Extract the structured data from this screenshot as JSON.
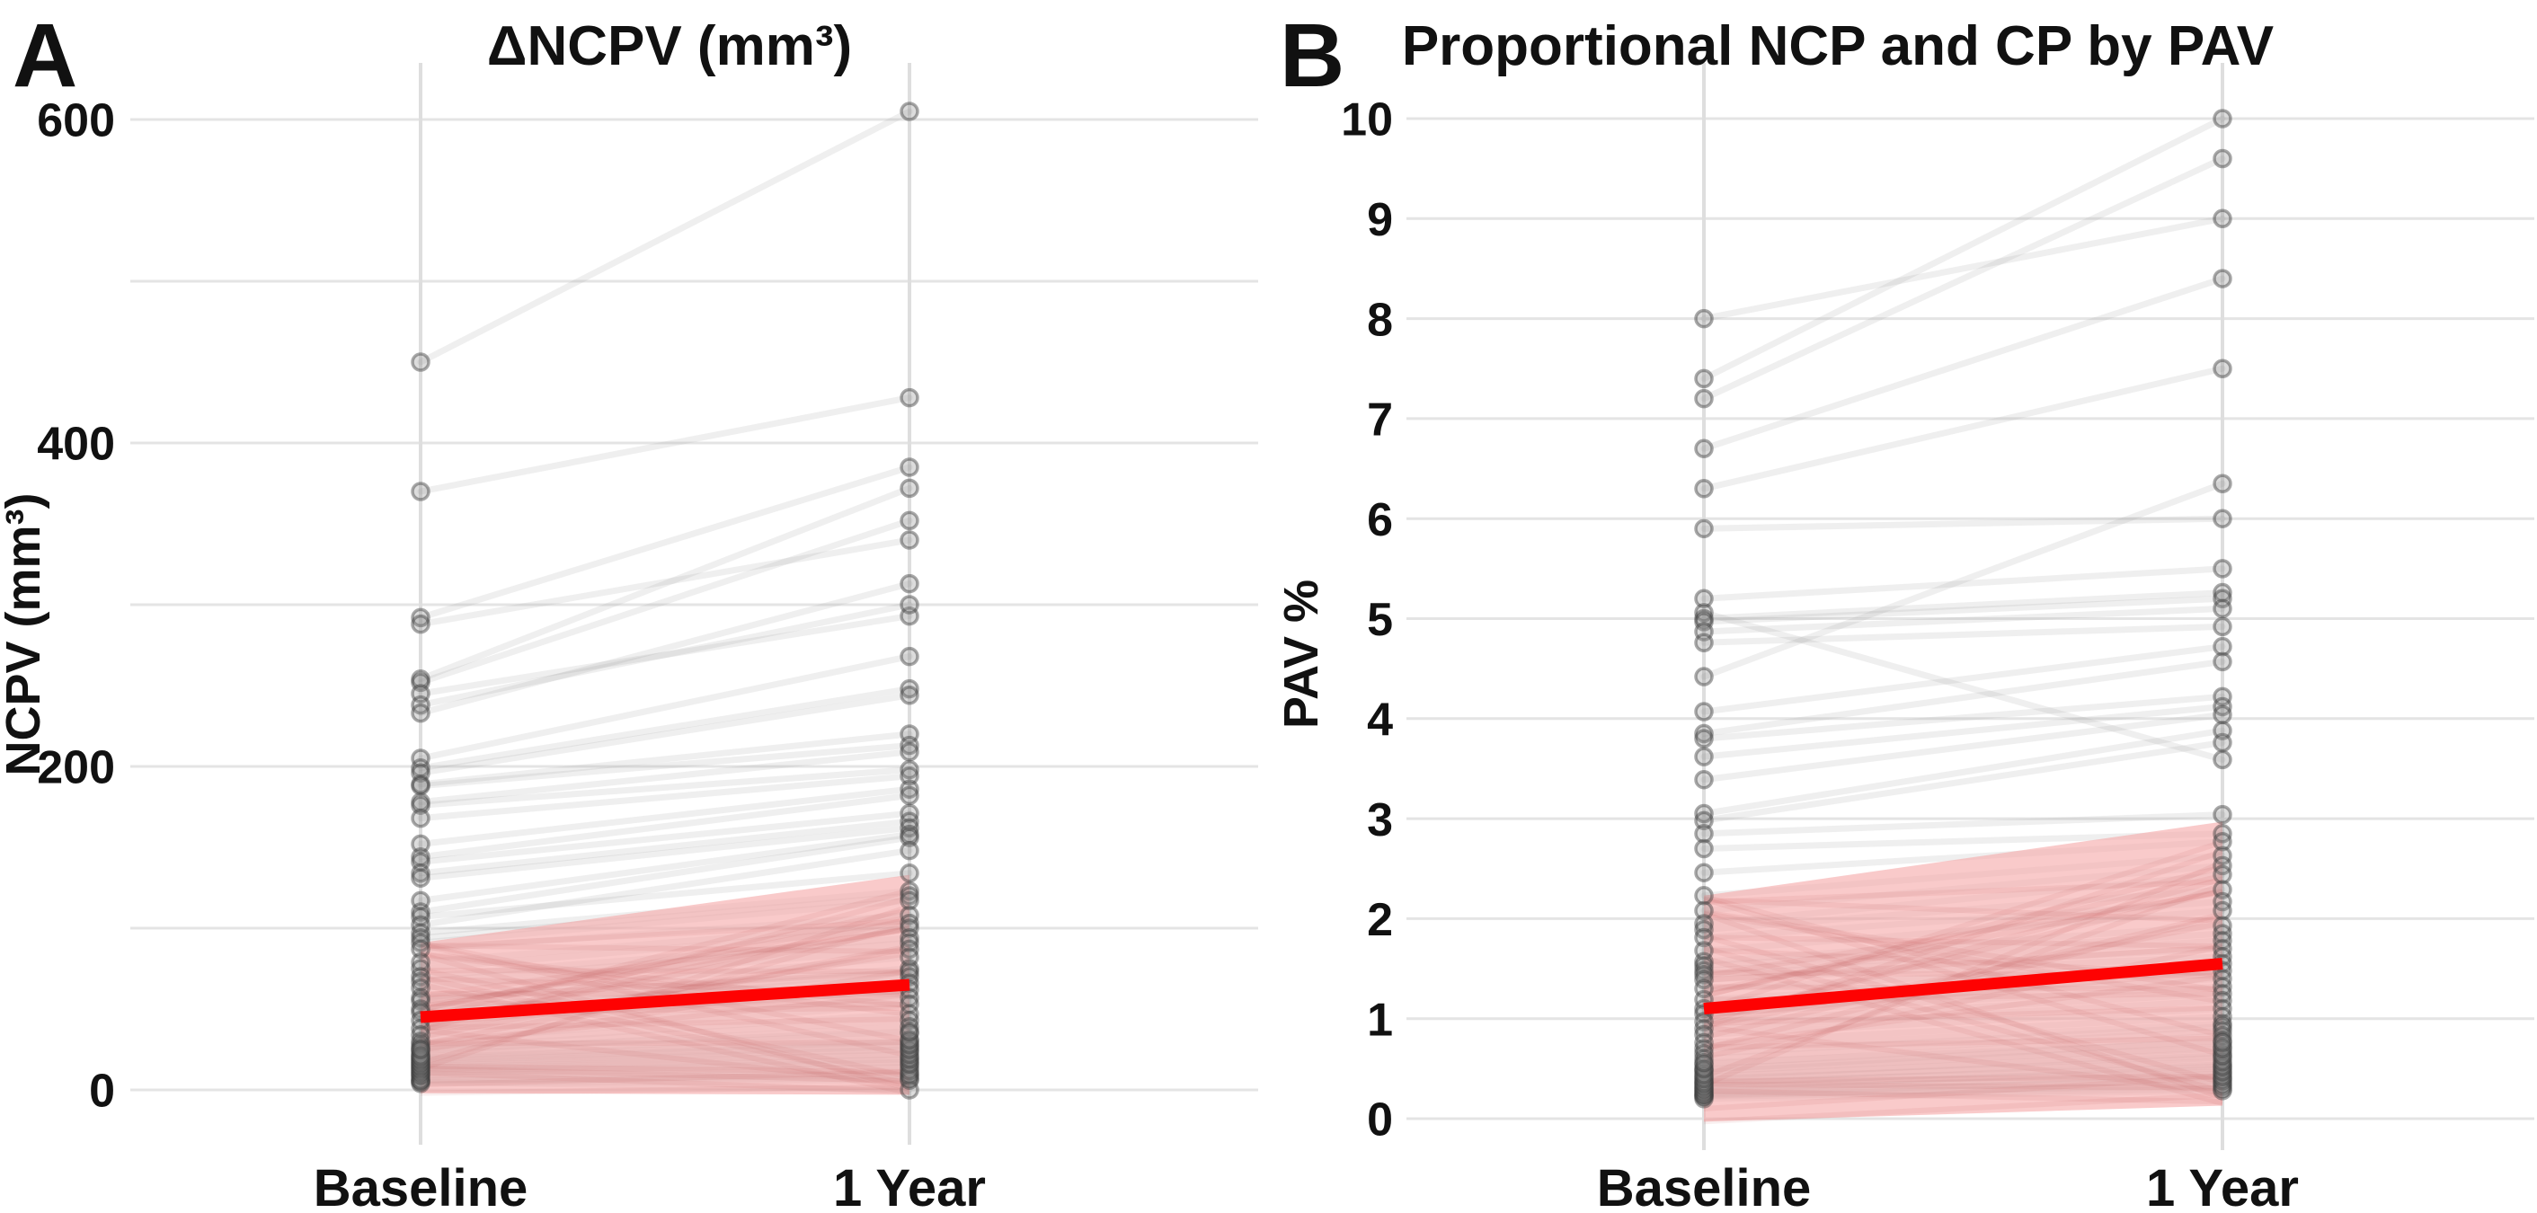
{
  "figure_background": "#ffffff",
  "colors": {
    "trend_red": "#fe0202",
    "ci_band_pink": "#f5a9a9",
    "ci_streak": "#c05050",
    "pair_line_gray": "#9a9a9a",
    "point_fill": "#8c8c8c",
    "point_stroke": "#3f3f3f",
    "gridline": "#e4e4e4",
    "text": "#111111"
  },
  "chart_data": [
    {
      "type": "line",
      "panel_label": "A",
      "title": "ΔNCPV (mm³)",
      "ylabel": "NCPV (mm³)",
      "xlabel": "",
      "categories": [
        "Baseline",
        "1 Year"
      ],
      "y_ticks": [
        {
          "value": 0,
          "label": "0"
        },
        {
          "value": 200,
          "label": "200"
        },
        {
          "value": 400,
          "label": "400"
        },
        {
          "value": 600,
          "label": "600"
        }
      ],
      "grid_values": [
        0,
        100,
        200,
        300,
        400,
        500,
        600
      ],
      "ylim": [
        0,
        620
      ],
      "legend": "none",
      "pairs": [
        [
          450,
          605
        ],
        [
          370,
          428
        ],
        [
          292,
          385
        ],
        [
          288,
          340
        ],
        [
          254,
          372
        ],
        [
          252,
          352
        ],
        [
          245,
          293
        ],
        [
          238,
          300
        ],
        [
          233,
          313
        ],
        [
          205,
          268
        ],
        [
          199,
          248
        ],
        [
          196,
          244
        ],
        [
          189,
          220
        ],
        [
          188,
          213
        ],
        [
          178,
          209
        ],
        [
          176,
          198
        ],
        [
          168,
          194
        ],
        [
          152,
          186
        ],
        [
          144,
          182
        ],
        [
          141,
          171
        ],
        [
          134,
          166
        ],
        [
          131,
          162
        ],
        [
          117,
          158
        ],
        [
          110,
          156
        ],
        [
          107,
          134
        ],
        [
          102,
          148
        ],
        [
          97,
          123
        ],
        [
          94,
          120
        ],
        [
          91,
          117
        ],
        [
          87,
          108
        ],
        [
          79,
          103
        ],
        [
          75,
          100
        ],
        [
          70,
          94
        ],
        [
          67,
          91
        ],
        [
          63,
          87
        ],
        [
          57,
          82
        ],
        [
          55,
          75
        ],
        [
          50,
          73
        ],
        [
          48,
          70
        ],
        [
          43,
          66
        ],
        [
          38,
          62
        ],
        [
          34,
          57
        ],
        [
          30,
          53
        ],
        [
          28,
          47
        ],
        [
          26,
          43
        ],
        [
          24,
          39
        ],
        [
          22,
          35
        ],
        [
          20,
          30
        ],
        [
          18,
          27
        ],
        [
          16,
          24
        ],
        [
          14,
          20
        ],
        [
          12,
          17
        ],
        [
          10,
          14
        ],
        [
          8,
          10
        ],
        [
          6,
          7
        ],
        [
          5,
          0
        ],
        [
          4,
          6
        ],
        [
          6,
          9
        ],
        [
          9,
          12
        ],
        [
          11,
          16
        ],
        [
          13,
          19
        ],
        [
          15,
          22
        ],
        [
          17,
          25
        ],
        [
          19,
          28
        ],
        [
          21,
          31
        ],
        [
          25,
          36
        ]
      ],
      "trend_line": {
        "baseline": 45,
        "year1": 65
      },
      "ci_band": {
        "baseline": [
          -2,
          91
        ],
        "year1": [
          -3,
          133
        ]
      }
    },
    {
      "type": "line",
      "panel_label": "B",
      "title": "Proportional NCP and CP by PAV",
      "ylabel": "PAV %",
      "xlabel": "",
      "categories": [
        "Baseline",
        "1 Year"
      ],
      "y_ticks": [
        {
          "value": 0,
          "label": "0"
        },
        {
          "value": 1,
          "label": "1"
        },
        {
          "value": 2,
          "label": "2"
        },
        {
          "value": 3,
          "label": "3"
        },
        {
          "value": 4,
          "label": "4"
        },
        {
          "value": 5,
          "label": "5"
        },
        {
          "value": 6,
          "label": "6"
        },
        {
          "value": 7,
          "label": "7"
        },
        {
          "value": 8,
          "label": "8"
        },
        {
          "value": 9,
          "label": "9"
        },
        {
          "value": 10,
          "label": "10"
        }
      ],
      "grid_values": [
        0,
        1,
        2,
        3,
        4,
        5,
        6,
        7,
        8,
        9,
        10
      ],
      "ylim": [
        0,
        10.2
      ],
      "legend": "none",
      "pairs": [
        [
          8.0,
          9.0
        ],
        [
          7.4,
          10.0
        ],
        [
          7.2,
          9.6
        ],
        [
          6.7,
          8.4
        ],
        [
          6.3,
          7.5
        ],
        [
          5.9,
          6.0
        ],
        [
          5.2,
          5.5
        ],
        [
          5.06,
          3.59
        ],
        [
          5.0,
          5.26
        ],
        [
          4.97,
          5.2
        ],
        [
          4.87,
          5.1
        ],
        [
          4.76,
          4.92
        ],
        [
          4.42,
          6.35
        ],
        [
          4.07,
          4.72
        ],
        [
          3.85,
          4.57
        ],
        [
          3.8,
          4.22
        ],
        [
          3.62,
          4.12
        ],
        [
          3.39,
          4.04
        ],
        [
          3.05,
          3.88
        ],
        [
          2.98,
          3.76
        ],
        [
          2.85,
          3.04
        ],
        [
          2.7,
          2.85
        ],
        [
          2.46,
          2.77
        ],
        [
          2.23,
          2.63
        ],
        [
          2.08,
          2.53
        ],
        [
          1.95,
          2.44
        ],
        [
          1.89,
          2.29
        ],
        [
          1.81,
          2.17
        ],
        [
          1.68,
          2.08
        ],
        [
          1.57,
          1.93
        ],
        [
          1.53,
          1.85
        ],
        [
          1.48,
          1.78
        ],
        [
          1.44,
          1.7
        ],
        [
          1.39,
          1.62
        ],
        [
          1.3,
          1.55
        ],
        [
          1.19,
          1.48
        ],
        [
          1.1,
          1.4
        ],
        [
          1.05,
          1.32
        ],
        [
          0.97,
          1.25
        ],
        [
          0.9,
          1.18
        ],
        [
          0.84,
          1.1
        ],
        [
          0.76,
          1.02
        ],
        [
          0.7,
          0.95
        ],
        [
          0.65,
          0.92
        ],
        [
          0.6,
          0.88
        ],
        [
          0.54,
          0.83
        ],
        [
          0.49,
          0.78
        ],
        [
          0.47,
          0.72
        ],
        [
          0.42,
          0.66
        ],
        [
          0.38,
          0.61
        ],
        [
          0.35,
          0.54
        ],
        [
          0.31,
          0.5
        ],
        [
          0.28,
          0.45
        ],
        [
          0.25,
          0.4
        ],
        [
          0.23,
          0.35
        ],
        [
          0.22,
          0.3
        ],
        [
          0.2,
          0.28
        ],
        [
          0.24,
          0.33
        ],
        [
          0.27,
          0.38
        ],
        [
          0.3,
          0.42
        ],
        [
          0.33,
          0.47
        ],
        [
          0.36,
          0.52
        ],
        [
          0.4,
          0.57
        ],
        [
          0.44,
          0.63
        ],
        [
          0.5,
          0.7
        ],
        [
          0.56,
          0.76
        ]
      ],
      "trend_line": {
        "baseline": 1.1,
        "year1": 1.55
      },
      "ci_band": {
        "baseline": [
          -0.03,
          2.23
        ],
        "year1": [
          0.13,
          2.97
        ]
      }
    }
  ]
}
